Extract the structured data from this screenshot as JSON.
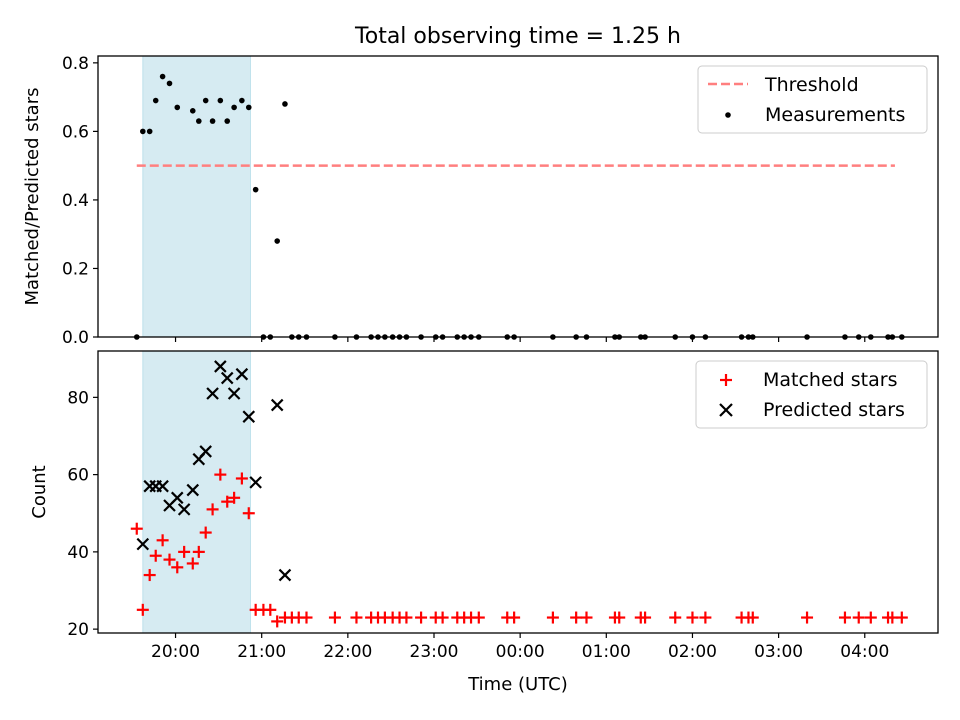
{
  "figure_title": "Total observing time = 1.25 h",
  "colors": {
    "threshold": "#ff7f7f",
    "measurement": "#000000",
    "matched": "#ff0000",
    "predicted": "#000000",
    "span": "#add8e6"
  },
  "chart_data": [
    {
      "type": "scatter",
      "ylabel": "Matched/Predicted stars",
      "xlabel": "",
      "x_unit": "hours (UTC), values past 24 are after midnight",
      "xlim": [
        19.1,
        28.85
      ],
      "ylim": [
        0,
        0.82
      ],
      "yticks": [
        0.0,
        0.2,
        0.4,
        0.6,
        0.8
      ],
      "ytick_labels": [
        "0.0",
        "0.2",
        "0.4",
        "0.6",
        "0.8"
      ],
      "highlight_span": [
        19.62,
        20.87
      ],
      "legend_position": "upper right",
      "threshold": {
        "name": "Threshold",
        "y": 0.5,
        "x_range": [
          19.55,
          28.35
        ]
      },
      "measurements": {
        "name": "Measurements",
        "x": [
          19.55,
          19.62,
          19.7,
          19.77,
          19.85,
          19.93,
          20.02,
          20.2,
          20.27,
          20.35,
          20.43,
          20.52,
          20.6,
          20.68,
          20.77,
          20.85,
          20.93,
          21.02,
          21.1,
          21.18,
          21.27,
          21.35,
          21.43,
          21.52,
          21.85,
          22.1,
          22.27,
          22.35,
          22.43,
          22.52,
          22.6,
          22.68,
          22.85,
          23.02,
          23.1,
          23.27,
          23.35,
          23.43,
          23.52,
          23.85,
          23.93,
          24.38,
          24.65,
          24.77,
          25.1,
          25.15,
          25.4,
          25.45,
          25.8,
          26.0,
          26.15,
          26.57,
          26.65,
          26.7,
          27.33,
          27.77,
          27.93,
          28.07,
          28.27,
          28.32,
          28.43
        ],
        "y": [
          0.0,
          0.6,
          0.6,
          0.69,
          0.76,
          0.74,
          0.67,
          0.66,
          0.63,
          0.69,
          0.63,
          0.69,
          0.63,
          0.67,
          0.69,
          0.67,
          0.43,
          0.0,
          0.0,
          0.28,
          0.68,
          0.0,
          0.0,
          0.0,
          0.0,
          0.0,
          0.0,
          0.0,
          0.0,
          0.0,
          0.0,
          0.0,
          0.0,
          0.0,
          0.0,
          0.0,
          0.0,
          0.0,
          0.0,
          0.0,
          0.0,
          0.0,
          0.0,
          0.0,
          0.0,
          0.0,
          0.0,
          0.0,
          0.0,
          0.0,
          0.0,
          0.0,
          0.0,
          0.0,
          0.0,
          0.0,
          0.0,
          0.0,
          0.0,
          0.0,
          0.0
        ]
      }
    },
    {
      "type": "scatter",
      "ylabel": "Count",
      "xlabel": "Time (UTC)",
      "x_unit": "hours (UTC), values past 24 are after midnight",
      "xlim": [
        19.1,
        28.85
      ],
      "ylim": [
        19,
        92
      ],
      "yticks": [
        20,
        40,
        60,
        80
      ],
      "ytick_labels": [
        "20",
        "40",
        "60",
        "80"
      ],
      "xticks": [
        20,
        21,
        22,
        23,
        24,
        25,
        26,
        27,
        28
      ],
      "xtick_labels": [
        "20:00",
        "21:00",
        "22:00",
        "23:00",
        "00:00",
        "01:00",
        "02:00",
        "03:00",
        "04:00"
      ],
      "highlight_span": [
        19.62,
        20.87
      ],
      "legend_position": "upper right",
      "series": [
        {
          "name": "Matched stars",
          "marker": "plus",
          "x": [
            19.55,
            19.62,
            19.7,
            19.77,
            19.85,
            19.93,
            20.02,
            20.1,
            20.2,
            20.27,
            20.35,
            20.43,
            20.52,
            20.6,
            20.68,
            20.77,
            20.85,
            20.93,
            21.02,
            21.1,
            21.18,
            21.27,
            21.35,
            21.43,
            21.52,
            21.85,
            22.1,
            22.27,
            22.35,
            22.43,
            22.52,
            22.6,
            22.68,
            22.85,
            23.02,
            23.1,
            23.27,
            23.35,
            23.43,
            23.52,
            23.85,
            23.93,
            24.38,
            24.65,
            24.77,
            25.1,
            25.15,
            25.4,
            25.45,
            25.8,
            26.0,
            26.15,
            26.57,
            26.65,
            26.7,
            27.33,
            27.77,
            27.93,
            28.07,
            28.27,
            28.32,
            28.43
          ],
          "y": [
            46,
            25,
            34,
            39,
            43,
            38,
            36,
            40,
            37,
            40,
            45,
            51,
            60,
            53,
            54,
            59,
            50,
            25,
            25,
            25,
            22,
            23,
            23,
            23,
            23,
            23,
            23,
            23,
            23,
            23,
            23,
            23,
            23,
            23,
            23,
            23,
            23,
            23,
            23,
            23,
            23,
            23,
            23,
            23,
            23,
            23,
            23,
            23,
            23,
            23,
            23,
            23,
            23,
            23,
            23,
            23,
            23,
            23,
            23,
            23,
            23,
            23
          ]
        },
        {
          "name": "Predicted stars",
          "marker": "x",
          "x": [
            19.62,
            19.7,
            19.77,
            19.85,
            19.93,
            20.02,
            20.1,
            20.2,
            20.27,
            20.35,
            20.43,
            20.52,
            20.6,
            20.68,
            20.77,
            20.85,
            20.93,
            21.18,
            21.27
          ],
          "y": [
            42,
            57,
            57,
            57,
            52,
            54,
            51,
            56,
            64,
            66,
            81,
            88,
            85,
            81,
            86,
            75,
            58,
            78,
            34
          ]
        }
      ]
    }
  ]
}
